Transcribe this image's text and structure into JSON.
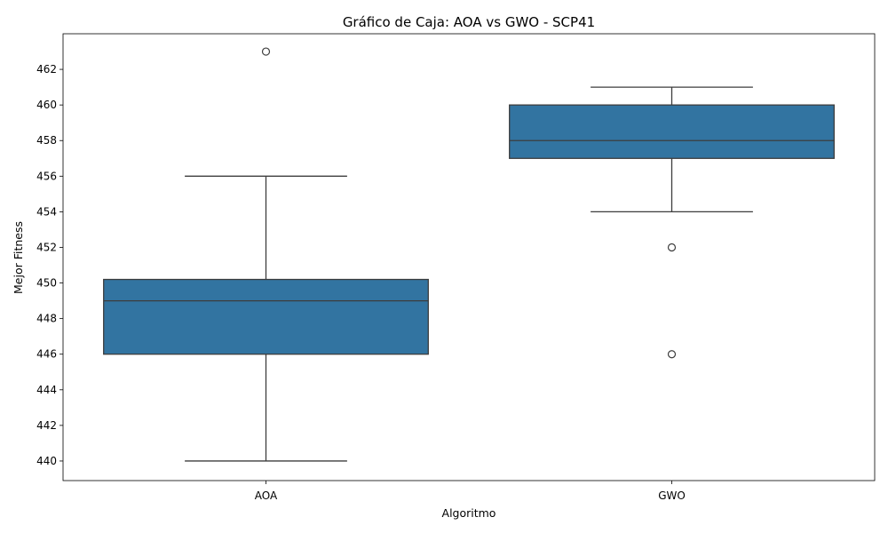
{
  "chart_data": {
    "type": "box",
    "title": "Gráfico de Caja: AOA vs GWO - SCP41",
    "xlabel": "Algoritmo",
    "ylabel": "Mejor Fitness",
    "ylim": [
      438.9,
      464.0
    ],
    "yticks": [
      440,
      442,
      444,
      446,
      448,
      450,
      452,
      454,
      456,
      458,
      460,
      462
    ],
    "categories": [
      "AOA",
      "GWO"
    ],
    "box_color": "#3274a1",
    "grid": false,
    "boxes": [
      {
        "category": "AOA",
        "whisker_low": 440,
        "q1": 446,
        "median": 449,
        "q3": 450.2,
        "whisker_high": 456,
        "outliers": [
          463
        ]
      },
      {
        "category": "GWO",
        "whisker_low": 454,
        "q1": 457,
        "median": 458,
        "q3": 460,
        "whisker_high": 461,
        "outliers": [
          452,
          446
        ]
      }
    ]
  }
}
